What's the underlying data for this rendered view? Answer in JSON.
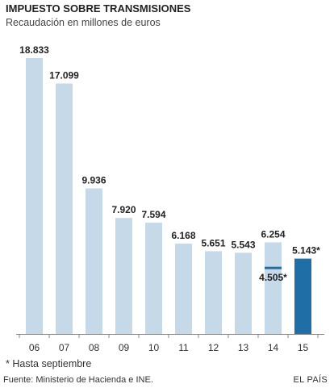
{
  "chart_data": {
    "type": "bar",
    "title": "IMPUESTO SOBRE TRANSMISIONES",
    "subtitle": "Recaudación en millones de euros",
    "categories": [
      "06",
      "07",
      "08",
      "09",
      "10",
      "11",
      "12",
      "13",
      "14",
      "15"
    ],
    "values": [
      18833,
      17099,
      9936,
      7920,
      7594,
      6168,
      5651,
      5543,
      6254,
      5143
    ],
    "value_labels": [
      "18.833",
      "17.099",
      "9.936",
      "7.920",
      "7.594",
      "6.168",
      "5.651",
      "5.543",
      "6.254",
      "5.143*"
    ],
    "highlight_index": 9,
    "marker": {
      "category": "14",
      "value": 4505,
      "label": "4.505*"
    },
    "ylim": [
      0,
      18833
    ],
    "grid": false,
    "colors": {
      "bar": "#c6d9e8",
      "highlight": "#1f6fa6",
      "marker": "#1f6fa6",
      "axis": "#888888"
    }
  },
  "footnote": "* Hasta septiembre",
  "source": "Fuente: Ministerio de Hacienda e INE.",
  "brand": "EL PAÍS"
}
